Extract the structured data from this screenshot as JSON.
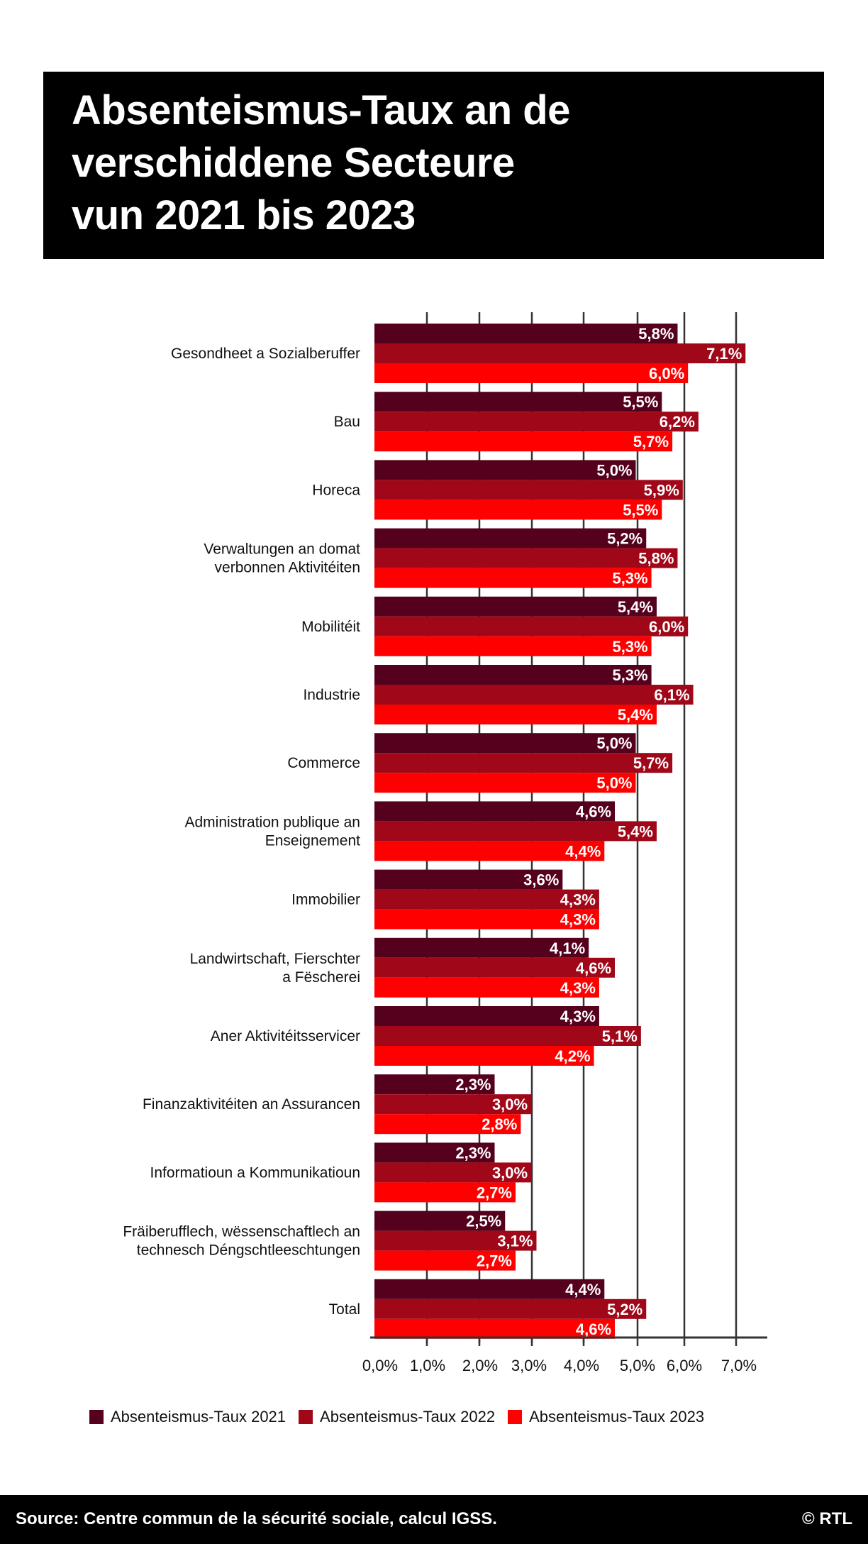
{
  "title": "Absenteismus-Taux an de\nverschiddene Secteure\nvun 2021 bis 2023",
  "chart_data": {
    "type": "bar",
    "orientation": "horizontal",
    "title": "Absenteismus-Taux an de verschiddene Secteure vun 2021 bis 2023",
    "categories": [
      "Gesondheet a Sozialberuffer",
      "Bau",
      "Horeca",
      "Verwaltungen an domat\nverbonnen Aktivitéiten",
      "Mobilitéit",
      "Industrie",
      "Commerce",
      "Administration publique an\nEnseignement",
      "Immobilier",
      "Landwirtschaft, Fierschter\na Fëscherei",
      "Aner Aktivitéitsservicer",
      "Finanzaktivitéiten an Assurancen",
      "Informatioun a Kommunikatioun",
      "Fräiberufflech, wëssenschaftlech an\ntechnesch Déngschtleeschtungen",
      "Total"
    ],
    "series": [
      {
        "name": "Absenteismus-Taux 2021",
        "color": "#55001c",
        "values": [
          5.8,
          5.5,
          5.0,
          5.2,
          5.4,
          5.3,
          5.0,
          4.6,
          3.6,
          4.1,
          4.3,
          2.3,
          2.3,
          2.5,
          4.4
        ],
        "labels": [
          "5,8%",
          "5,5%",
          "5,0%",
          "5,2%",
          "5,4%",
          "5,3%",
          "5,0%",
          "4,6%",
          "3,6%",
          "4,1%",
          "4,3%",
          "2,3%",
          "2,3%",
          "2,5%",
          "4,4%"
        ]
      },
      {
        "name": "Absenteismus-Taux 2022",
        "color": "#a0081a",
        "values": [
          7.1,
          6.2,
          5.9,
          5.8,
          6.0,
          6.1,
          5.7,
          5.4,
          4.3,
          4.6,
          5.1,
          3.0,
          3.0,
          3.1,
          5.2
        ],
        "labels": [
          "7,1%",
          "6,2%",
          "5,9%",
          "5,8%",
          "6,0%",
          "6,1%",
          "5,7%",
          "5,4%",
          "4,3%",
          "4,6%",
          "5,1%",
          "3,0%",
          "3,0%",
          "3,1%",
          "5,2%"
        ]
      },
      {
        "name": "Absenteismus-Taux 2023",
        "color": "#ff0000",
        "values": [
          6.0,
          5.7,
          5.5,
          5.3,
          5.3,
          5.4,
          5.0,
          4.4,
          4.3,
          4.3,
          4.2,
          2.8,
          2.7,
          2.7,
          4.6
        ],
        "labels": [
          "6,0%",
          "5,7%",
          "5,5%",
          "5,3%",
          "5,3%",
          "5,4%",
          "5,0%",
          "4,4%",
          "4,3%",
          "4,3%",
          "4,2%",
          "2,8%",
          "2,7%",
          "2,7%",
          "4,6%"
        ]
      }
    ],
    "x_ticks": [
      "0,0%",
      "1,0%",
      "2,0%",
      "3,0%",
      "4,0%",
      "5,0%",
      "6,0%",
      "7,0%"
    ],
    "xlim": [
      0,
      7
    ],
    "grid": true,
    "legend": "bottom"
  },
  "footer": {
    "source": "Source: Centre commun de la sécurité sociale, calcul IGSS.",
    "copyright": "© RTL"
  }
}
